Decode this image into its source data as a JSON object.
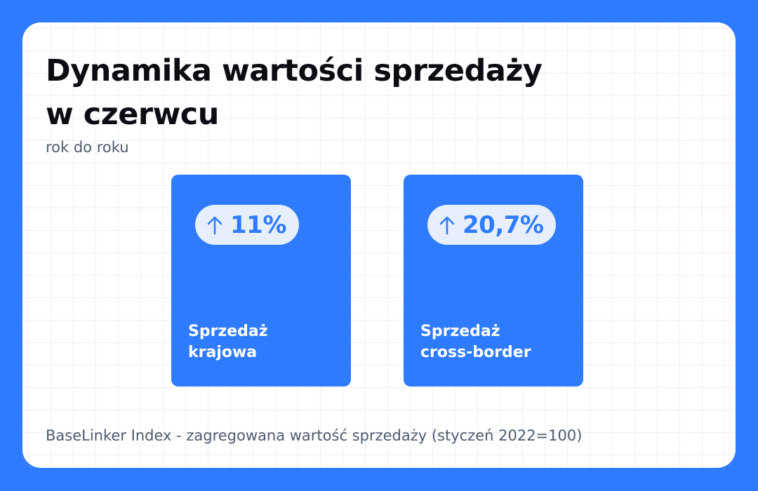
{
  "title": {
    "line1": "Dynamika wartości sprzedaży",
    "line2": "w czerwcu"
  },
  "subtitle": "rok do roku",
  "tiles": [
    {
      "change": "11%",
      "direction_icon": "arrow-up-icon",
      "label_line1": "Sprzedaż",
      "label_line2": "krajowa"
    },
    {
      "change": "20,7%",
      "direction_icon": "arrow-up-icon",
      "label_line1": "Sprzedaż",
      "label_line2": "cross-border"
    }
  ],
  "footer": "BaseLinker Index - zagregowana wartość sprzedaży (styczeń 2022=100)",
  "colors": {
    "brand_blue": "#2f7bff",
    "pill_background": "#e6effb",
    "title_text": "#0c0d12",
    "muted_text": "#4d5b6f"
  }
}
